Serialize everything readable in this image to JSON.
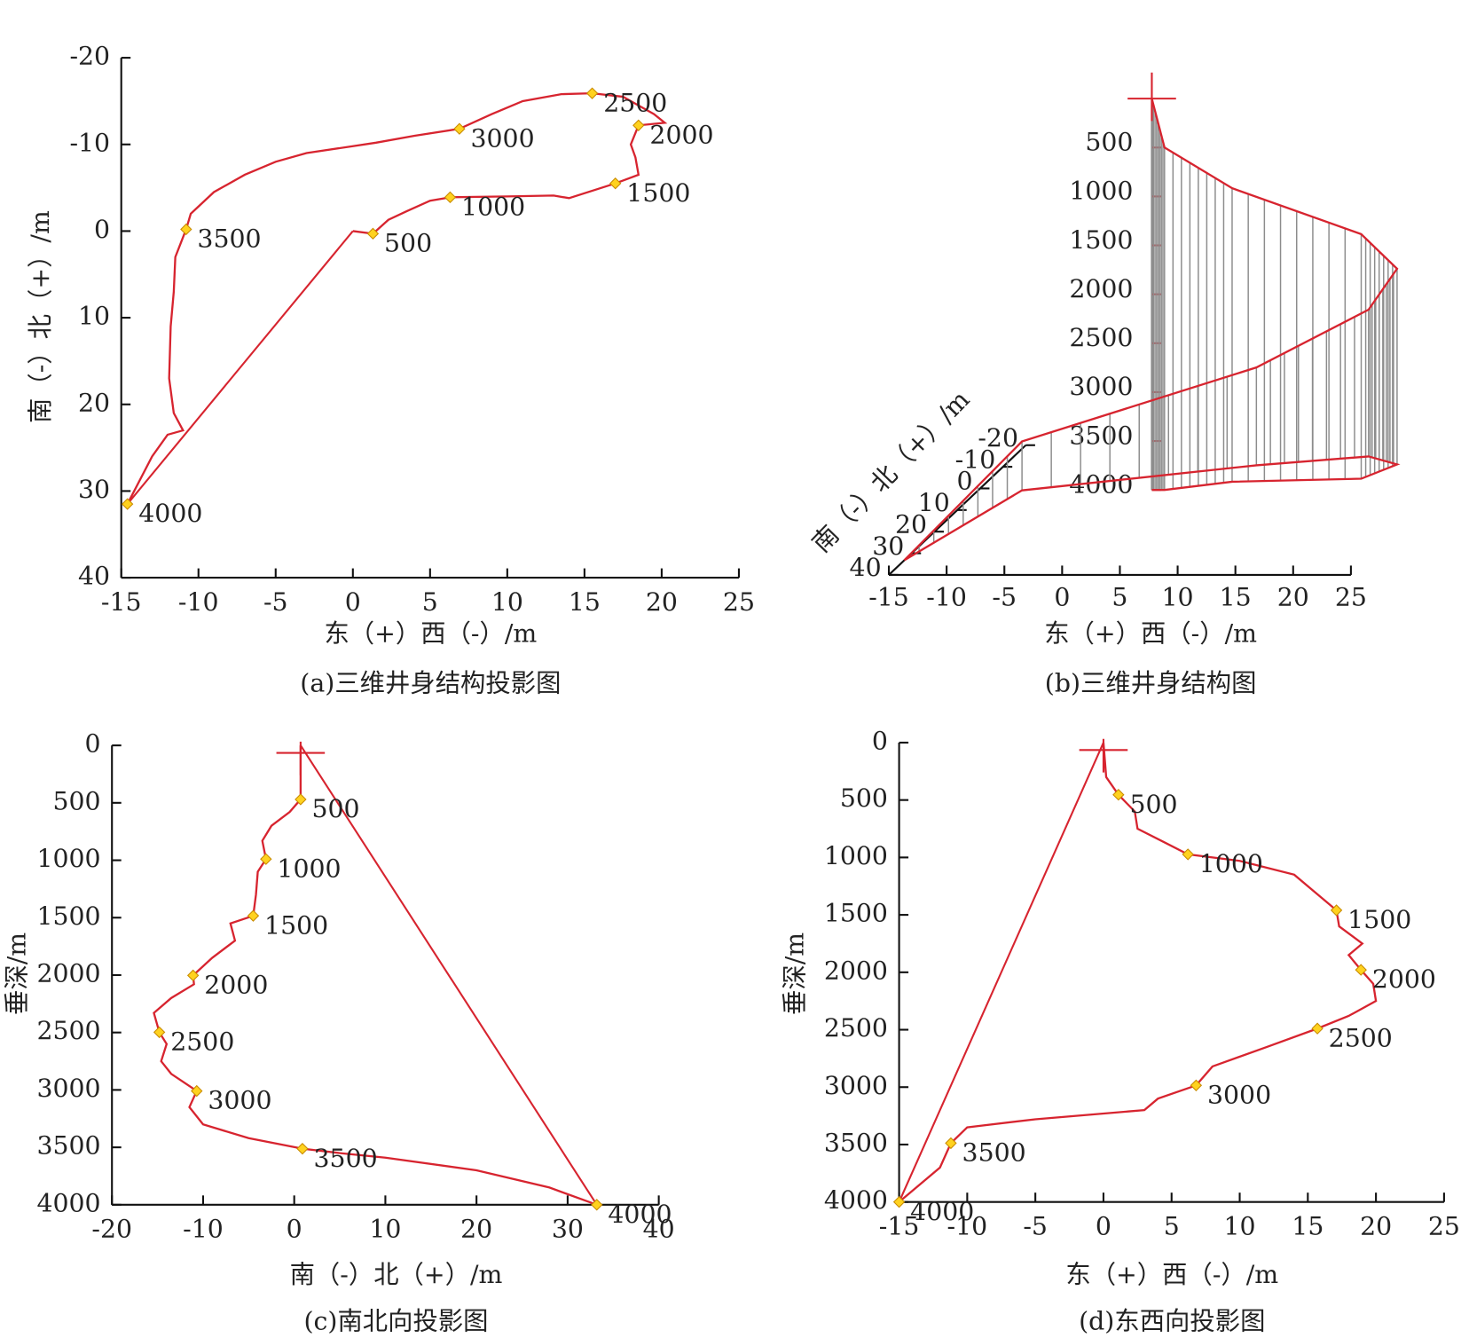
{
  "chart_data": [
    {
      "type": "line",
      "title": "(a)三维井身结构投影图",
      "xlabel": "东（+）西（-）/m",
      "ylabel": "南（-）北（+）/m",
      "xlim": [
        -15,
        25
      ],
      "xticks": [
        -15,
        -10,
        -5,
        0,
        5,
        10,
        15,
        20,
        25
      ],
      "ylim": [
        -20,
        40
      ],
      "yticks": [
        -20,
        -10,
        0,
        10,
        20,
        30,
        40
      ],
      "invert_y": true,
      "color": "#d7242f",
      "marker_color": "#ffd21f",
      "x": [
        0,
        1.3,
        2.3,
        3.5,
        5,
        6.3,
        10,
        13,
        14,
        17,
        18.5,
        18.3,
        18,
        18.5,
        20.2,
        19.5,
        18.5,
        17.5,
        15.5,
        13.5,
        11,
        9,
        6.9,
        4,
        1.5,
        0,
        -3,
        -5,
        -7,
        -9,
        -10.5,
        -10.8,
        -11.5,
        -11.6,
        -11.8,
        -11.9,
        -11.6,
        -11,
        -12,
        -13,
        -14.6
      ],
      "values": [
        0,
        0.3,
        -1.3,
        -2.3,
        -3.5,
        -3.9,
        -4,
        -4.1,
        -3.8,
        -5.5,
        -6.5,
        -8.5,
        -10,
        -12.2,
        -12.5,
        -13.5,
        -14.5,
        -15.5,
        -15.9,
        -15.8,
        -15,
        -13.5,
        -11.8,
        -11,
        -10.2,
        -9.8,
        -9,
        -8,
        -6.5,
        -4.5,
        -2,
        -0.2,
        3,
        7,
        11,
        17,
        21,
        23,
        23.5,
        26,
        31.5
      ],
      "points": {
        "x": [
          1.3,
          6.3,
          17,
          18.5,
          15.5,
          6.9,
          -10.8,
          -14.6
        ],
        "values": [
          0.3,
          -3.9,
          -5.5,
          -12.2,
          -15.9,
          -11.8,
          -0.2,
          31.5
        ],
        "labels": [
          500,
          1000,
          1500,
          2000,
          2500,
          3000,
          3500,
          4000
        ]
      }
    },
    {
      "type": "3d",
      "title": "(b)三维井身结构图",
      "xlabel": "东（+）西（-）/m",
      "ylabel": "南（-）北（+）/m",
      "xlim": [
        -15,
        25
      ],
      "xticks": [
        -15,
        -10,
        -5,
        0,
        5,
        10,
        15,
        20,
        25
      ],
      "ylim": [
        -20,
        40
      ],
      "yticks": [
        40,
        30,
        20,
        10,
        0,
        -10,
        -20
      ],
      "zlim": [
        0,
        4000
      ],
      "zticks": [
        500,
        1000,
        1500,
        2000,
        2500,
        3000,
        3500,
        4000
      ],
      "color": "#d7242f",
      "hatch_color": "#8c8c8c",
      "x": [
        0,
        1.1,
        6.2,
        17.1,
        18.9,
        15.7,
        6.8,
        -11.2,
        -15
      ],
      "y": [
        0.7,
        0.7,
        -3.1,
        -4.5,
        -11.1,
        -14.8,
        -10.7,
        0.9,
        33.2
      ],
      "z": [
        0,
        500,
        1000,
        1500,
        2000,
        2500,
        3000,
        3500,
        4000
      ]
    },
    {
      "type": "line",
      "title": "(c)南北向投影图",
      "xlabel": "南（-）北（+）/m",
      "ylabel": "垂深/m",
      "xlim": [
        -20,
        40
      ],
      "xticks": [
        -20,
        -10,
        0,
        10,
        20,
        30,
        40
      ],
      "ylim": [
        0,
        4000
      ],
      "yticks": [
        0,
        500,
        1000,
        1500,
        2000,
        2500,
        3000,
        3500,
        4000
      ],
      "invert_y": true,
      "color": "#d7242f",
      "marker_color": "#ffd21f",
      "wellhead": true,
      "x": [
        0.7,
        0.7,
        -0.5,
        -2.5,
        -3.5,
        -3.1,
        -4,
        -4.2,
        -4.5,
        -7,
        -6.5,
        -9,
        -11.1,
        -11,
        -13.5,
        -15.4,
        -14.8,
        -14,
        -14.6,
        -13.5,
        -10.7,
        -11.5,
        -10,
        -5,
        0.9,
        5,
        10,
        20,
        28,
        33.2
      ],
      "values": [
        0,
        470,
        580,
        700,
        830,
        990,
        1100,
        1300,
        1484,
        1550,
        1700,
        1850,
        2003,
        2080,
        2200,
        2330,
        2498,
        2600,
        2750,
        2860,
        3009,
        3150,
        3300,
        3420,
        3512,
        3550,
        3590,
        3700,
        3850,
        4000
      ],
      "points": {
        "x": [
          0.7,
          -3.1,
          -4.5,
          -11.1,
          -14.8,
          -10.7,
          0.9,
          33.2
        ],
        "values": [
          470,
          990,
          1484,
          2003,
          2498,
          3009,
          3512,
          4000
        ],
        "labels": [
          500,
          1000,
          1500,
          2000,
          2500,
          3000,
          3500,
          4000
        ]
      }
    },
    {
      "type": "line",
      "title": "(d)东西向投影图",
      "xlabel": "东（+）西（-）/m",
      "ylabel": "垂深/m",
      "xlim": [
        -15,
        25
      ],
      "xticks": [
        -15,
        -10,
        -5,
        0,
        5,
        10,
        15,
        20,
        25
      ],
      "ylim": [
        0,
        4000
      ],
      "yticks": [
        0,
        500,
        1000,
        1500,
        2000,
        2500,
        3000,
        3500,
        4000
      ],
      "invert_y": true,
      "color": "#d7242f",
      "marker_color": "#ffd21f",
      "wellhead": true,
      "x": [
        0,
        0.2,
        1.1,
        2.3,
        2.5,
        4.5,
        6.2,
        10,
        14,
        15.5,
        17.1,
        17.3,
        19,
        18,
        18.9,
        19.8,
        20,
        18,
        15.7,
        12,
        8,
        6.8,
        4,
        3,
        -5,
        -10,
        -11.2,
        -12,
        -15
      ],
      "values": [
        0,
        300,
        454,
        600,
        750,
        870,
        973,
        1030,
        1150,
        1300,
        1460,
        1600,
        1750,
        1850,
        1979,
        2100,
        2250,
        2380,
        2490,
        2650,
        2820,
        2985,
        3100,
        3200,
        3280,
        3350,
        3488,
        3700,
        4000
      ],
      "points": {
        "x": [
          1.1,
          6.2,
          17.1,
          18.9,
          15.7,
          6.8,
          -11.2,
          -15
        ],
        "values": [
          454,
          973,
          1460,
          1979,
          2490,
          2985,
          3488,
          4000
        ],
        "labels": [
          500,
          1000,
          1500,
          2000,
          2500,
          3000,
          3500,
          4000
        ]
      }
    }
  ]
}
